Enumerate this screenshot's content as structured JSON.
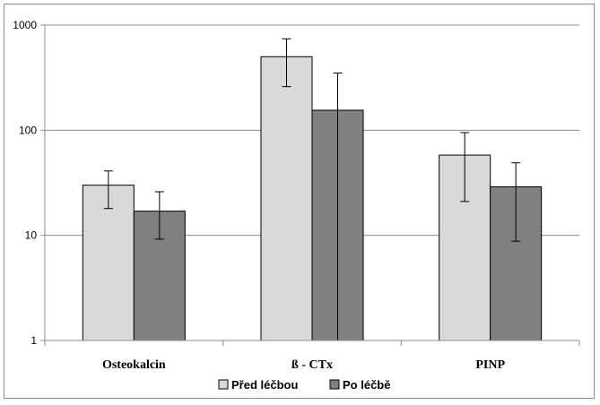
{
  "chart_data": {
    "type": "bar",
    "title": "",
    "xlabel": "",
    "ylabel": "",
    "yscale": "log",
    "ylim": [
      1,
      1000
    ],
    "yticks": [
      {
        "value": 1,
        "label": "1"
      },
      {
        "value": 10,
        "label": "10"
      },
      {
        "value": 100,
        "label": "100"
      },
      {
        "value": 1000,
        "label": "1000"
      }
    ],
    "grid": true,
    "legend_position": "bottom",
    "categories": [
      "Osteokalcin",
      "ß - CTx",
      "PINP"
    ],
    "series": [
      {
        "name": "Před léčbou",
        "color": "#d9d9d9",
        "values": [
          30,
          500,
          58
        ],
        "error_low": [
          18,
          260,
          21
        ],
        "error_high": [
          41,
          740,
          95
        ]
      },
      {
        "name": "Po léčbě",
        "color": "#808080",
        "values": [
          17,
          155,
          29
        ],
        "error_low": [
          9.2,
          0,
          8.8
        ],
        "error_high": [
          26,
          350,
          49
        ]
      }
    ]
  }
}
